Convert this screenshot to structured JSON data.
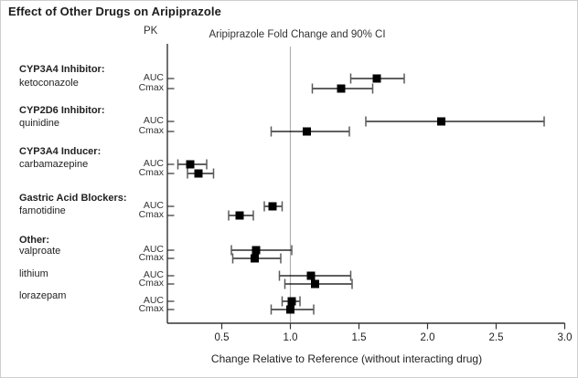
{
  "title": "Effect of Other Drugs on Aripiprazole",
  "header": {
    "pk_label": "PK",
    "plot_label": "Aripiprazole Fold Change and 90% CI"
  },
  "x_caption": "Change Relative to Reference (without interacting drug)",
  "colors": {
    "marker": "#000000",
    "ci_line": "#000000",
    "ci_cap": "#5a5a5a",
    "axis": "#333333",
    "reference_line": "#b0b0b0",
    "text": "#1b1b1b"
  },
  "chart_data": {
    "type": "scatter",
    "subtype": "forest-plot",
    "title": "Effect of Other Drugs on Aripiprazole",
    "xlabel": "Change Relative to Reference (without interacting drug)",
    "x_tick_labels": [
      "0.5",
      "1.0",
      "1.5",
      "2.0",
      "2.5",
      "3.0"
    ],
    "x_tick_values": [
      0.5,
      1.0,
      1.5,
      2.0,
      2.5,
      3.0
    ],
    "xlim": [
      0.1,
      3.0
    ],
    "reference_x": 1.0,
    "grid": false,
    "legend": false,
    "groups": [
      {
        "category": "CYP3A4 Inhibitor:",
        "drug": "ketoconazole",
        "measures": [
          {
            "pk": "AUC",
            "value": 1.63,
            "ci_low": 1.44,
            "ci_high": 1.83
          },
          {
            "pk": "Cmax",
            "value": 1.37,
            "ci_low": 1.16,
            "ci_high": 1.6
          }
        ]
      },
      {
        "category": "CYP2D6 Inhibitor:",
        "drug": "quinidine",
        "measures": [
          {
            "pk": "AUC",
            "value": 2.1,
            "ci_low": 1.55,
            "ci_high": 2.85
          },
          {
            "pk": "Cmax",
            "value": 1.12,
            "ci_low": 0.86,
            "ci_high": 1.43
          }
        ]
      },
      {
        "category": "CYP3A4 Inducer:",
        "drug": "carbamazepine",
        "measures": [
          {
            "pk": "AUC",
            "value": 0.27,
            "ci_low": 0.18,
            "ci_high": 0.39
          },
          {
            "pk": "Cmax",
            "value": 0.33,
            "ci_low": 0.25,
            "ci_high": 0.44
          }
        ]
      },
      {
        "category": "Gastric Acid Blockers:",
        "drug": "famotidine",
        "measures": [
          {
            "pk": "AUC",
            "value": 0.87,
            "ci_low": 0.81,
            "ci_high": 0.94
          },
          {
            "pk": "Cmax",
            "value": 0.63,
            "ci_low": 0.55,
            "ci_high": 0.73
          }
        ]
      },
      {
        "category": "Other:",
        "drug": "valproate",
        "measures": [
          {
            "pk": "AUC",
            "value": 0.75,
            "ci_low": 0.57,
            "ci_high": 1.01
          },
          {
            "pk": "Cmax",
            "value": 0.74,
            "ci_low": 0.58,
            "ci_high": 0.93
          }
        ]
      },
      {
        "category": null,
        "drug": "lithium",
        "measures": [
          {
            "pk": "AUC",
            "value": 1.15,
            "ci_low": 0.92,
            "ci_high": 1.44
          },
          {
            "pk": "Cmax",
            "value": 1.18,
            "ci_low": 0.96,
            "ci_high": 1.45
          }
        ]
      },
      {
        "category": null,
        "drug": "lorazepam",
        "measures": [
          {
            "pk": "AUC",
            "value": 1.01,
            "ci_low": 0.94,
            "ci_high": 1.07
          },
          {
            "pk": "Cmax",
            "value": 1.0,
            "ci_low": 0.86,
            "ci_high": 1.17
          }
        ]
      }
    ]
  }
}
